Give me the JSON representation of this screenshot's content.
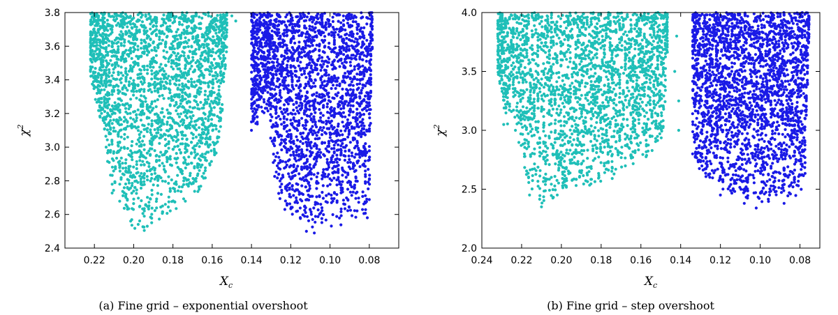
{
  "chart_data": [
    {
      "type": "scatter",
      "caption": "(a) Fine grid – exponential overshoot",
      "xlabel_main": "X",
      "xlabel_sub": "c",
      "ylabel_main": "χ",
      "ylabel_sup": "2",
      "xlim": [
        0.235,
        0.065
      ],
      "ylim": [
        2.4,
        3.8
      ],
      "xticks": [
        0.22,
        0.2,
        0.18,
        0.16,
        0.14,
        0.12,
        0.1,
        0.08
      ],
      "xtick_labels": [
        "0.22",
        "0.20",
        "0.18",
        "0.16",
        "0.14",
        "0.12",
        "0.10",
        "0.08"
      ],
      "yticks": [
        2.4,
        2.6,
        2.8,
        3.0,
        3.2,
        3.4,
        3.6,
        3.8
      ],
      "ytick_labels": [
        "2.4",
        "2.6",
        "2.8",
        "3.0",
        "3.2",
        "3.4",
        "3.6",
        "3.8"
      ],
      "grid": false,
      "series": [
        {
          "color": "#1fbfb8",
          "density_profile": [
            [
              0.222,
              3.4
            ],
            [
              0.214,
              3.0
            ],
            [
              0.212,
              2.75
            ],
            [
              0.21,
              2.65
            ],
            [
              0.205,
              2.6
            ],
            [
              0.2,
              2.5
            ],
            [
              0.195,
              2.5
            ],
            [
              0.19,
              2.53
            ],
            [
              0.185,
              2.58
            ],
            [
              0.18,
              2.6
            ],
            [
              0.175,
              2.63
            ],
            [
              0.17,
              2.68
            ],
            [
              0.165,
              2.75
            ],
            [
              0.162,
              2.85
            ],
            [
              0.158,
              2.95
            ],
            [
              0.155,
              3.15
            ],
            [
              0.152,
              3.7
            ]
          ],
          "outliers": [
            [
              0.222,
              3.45
            ],
            [
              0.222,
              3.55
            ],
            [
              0.222,
              3.62
            ],
            [
              0.218,
              3.7
            ],
            [
              0.214,
              3.0
            ],
            [
              0.213,
              2.98
            ],
            [
              0.148,
              3.75
            ],
            [
              0.15,
              3.78
            ]
          ]
        },
        {
          "color": "#1a1ae6",
          "density_profile": [
            [
              0.14,
              3.1
            ],
            [
              0.132,
              3.2
            ],
            [
              0.128,
              2.8
            ],
            [
              0.125,
              2.65
            ],
            [
              0.12,
              2.58
            ],
            [
              0.115,
              2.54
            ],
            [
              0.11,
              2.52
            ],
            [
              0.105,
              2.5
            ],
            [
              0.1,
              2.52
            ],
            [
              0.095,
              2.53
            ],
            [
              0.09,
              2.56
            ],
            [
              0.085,
              2.58
            ],
            [
              0.082,
              2.6
            ],
            [
              0.08,
              2.65
            ],
            [
              0.079,
              3.4
            ],
            [
              0.078,
              3.7
            ]
          ],
          "outliers": [
            [
              0.14,
              3.1
            ],
            [
              0.14,
              3.15
            ],
            [
              0.136,
              3.3
            ],
            [
              0.135,
              3.4
            ],
            [
              0.13,
              3.6
            ],
            [
              0.127,
              3.7
            ],
            [
              0.123,
              2.63
            ],
            [
              0.112,
              2.5
            ],
            [
              0.108,
              2.49
            ],
            [
              0.081,
              2.58
            ]
          ]
        }
      ]
    },
    {
      "type": "scatter",
      "caption": "(b) Fine grid – step overshoot",
      "xlabel_main": "X",
      "xlabel_sub": "c",
      "ylabel_main": "χ",
      "ylabel_sup": "2",
      "xlim": [
        0.24,
        0.07
      ],
      "ylim": [
        2.0,
        4.0
      ],
      "xticks": [
        0.24,
        0.22,
        0.2,
        0.18,
        0.16,
        0.14,
        0.12,
        0.1,
        0.08
      ],
      "xtick_labels": [
        "0.24",
        "0.22",
        "0.20",
        "0.18",
        "0.16",
        "0.14",
        "0.12",
        "0.10",
        "0.08"
      ],
      "yticks": [
        2.0,
        2.5,
        3.0,
        3.5,
        4.0
      ],
      "ytick_labels": [
        "2.0",
        "2.5",
        "3.0",
        "3.5",
        "4.0"
      ],
      "grid": false,
      "series": [
        {
          "color": "#1fbfb8",
          "density_profile": [
            [
              0.232,
              3.5
            ],
            [
              0.228,
              3.05
            ],
            [
              0.222,
              2.95
            ],
            [
              0.218,
              2.6
            ],
            [
              0.215,
              2.45
            ],
            [
              0.21,
              2.38
            ],
            [
              0.205,
              2.4
            ],
            [
              0.2,
              2.45
            ],
            [
              0.195,
              2.48
            ],
            [
              0.19,
              2.5
            ],
            [
              0.185,
              2.52
            ],
            [
              0.18,
              2.55
            ],
            [
              0.175,
              2.58
            ],
            [
              0.17,
              2.62
            ],
            [
              0.165,
              2.68
            ],
            [
              0.16,
              2.72
            ],
            [
              0.155,
              2.8
            ],
            [
              0.15,
              2.9
            ],
            [
              0.148,
              3.1
            ],
            [
              0.146,
              3.95
            ]
          ],
          "outliers": [
            [
              0.232,
              3.6
            ],
            [
              0.232,
              3.8
            ],
            [
              0.229,
              3.05
            ],
            [
              0.216,
              2.45
            ],
            [
              0.21,
              2.35
            ],
            [
              0.143,
              3.5
            ],
            [
              0.142,
              3.8
            ],
            [
              0.141,
              3.0
            ],
            [
              0.141,
              3.25
            ]
          ]
        },
        {
          "color": "#1a1ae6",
          "density_profile": [
            [
              0.134,
              3.0
            ],
            [
              0.133,
              2.8
            ],
            [
              0.132,
              2.7
            ],
            [
              0.128,
              2.6
            ],
            [
              0.125,
              2.55
            ],
            [
              0.12,
              2.5
            ],
            [
              0.115,
              2.45
            ],
            [
              0.11,
              2.42
            ],
            [
              0.105,
              2.38
            ],
            [
              0.1,
              2.36
            ],
            [
              0.095,
              2.4
            ],
            [
              0.09,
              2.4
            ],
            [
              0.085,
              2.42
            ],
            [
              0.08,
              2.45
            ],
            [
              0.077,
              2.6
            ],
            [
              0.076,
              3.5
            ],
            [
              0.075,
              3.95
            ]
          ],
          "outliers": [
            [
              0.134,
              2.8
            ],
            [
              0.133,
              2.9
            ],
            [
              0.133,
              3.2
            ],
            [
              0.12,
              2.45
            ],
            [
              0.108,
              2.38
            ],
            [
              0.102,
              2.34
            ],
            [
              0.088,
              2.38
            ]
          ]
        }
      ]
    }
  ]
}
